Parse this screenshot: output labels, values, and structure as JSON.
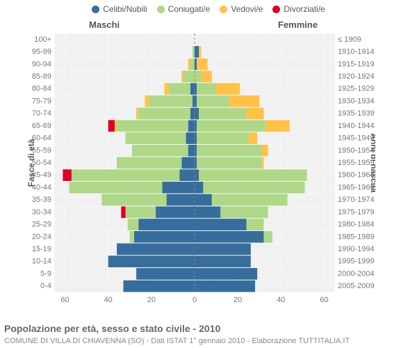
{
  "legend": [
    {
      "label": "Celibi/Nubili",
      "color": "#366d9c"
    },
    {
      "label": "Coniugati/e",
      "color": "#aed888"
    },
    {
      "label": "Vedovi/e",
      "color": "#ffc249"
    },
    {
      "label": "Divorziati/e",
      "color": "#d9002a"
    }
  ],
  "header": {
    "male": "Maschi",
    "female": "Femmine"
  },
  "axis": {
    "left_title": "Fasce di età",
    "right_title": "Anni di nascita",
    "x_ticks": [
      -60,
      -40,
      -20,
      0,
      20,
      40,
      60
    ]
  },
  "chart": {
    "plot_bg": "#f1f1f1",
    "xmin": -65,
    "xmax": 65,
    "bar_gap": 1
  },
  "age_bands": [
    {
      "age": "0-4",
      "birth": "2005-2009"
    },
    {
      "age": "5-9",
      "birth": "2000-2004"
    },
    {
      "age": "10-14",
      "birth": "1995-1999"
    },
    {
      "age": "15-19",
      "birth": "1990-1994"
    },
    {
      "age": "20-24",
      "birth": "1985-1989"
    },
    {
      "age": "25-29",
      "birth": "1980-1984"
    },
    {
      "age": "30-34",
      "birth": "1975-1979"
    },
    {
      "age": "35-39",
      "birth": "1970-1974"
    },
    {
      "age": "40-44",
      "birth": "1965-1969"
    },
    {
      "age": "45-49",
      "birth": "1960-1964"
    },
    {
      "age": "50-54",
      "birth": "1955-1959"
    },
    {
      "age": "55-59",
      "birth": "1950-1954"
    },
    {
      "age": "60-64",
      "birth": "1945-1949"
    },
    {
      "age": "65-69",
      "birth": "1940-1944"
    },
    {
      "age": "70-74",
      "birth": "1935-1939"
    },
    {
      "age": "75-79",
      "birth": "1930-1934"
    },
    {
      "age": "80-84",
      "birth": "1925-1929"
    },
    {
      "age": "85-89",
      "birth": "1920-1924"
    },
    {
      "age": "90-94",
      "birth": "1915-1919"
    },
    {
      "age": "95-99",
      "birth": "1910-1914"
    },
    {
      "age": "100+",
      "birth": "≤ 1909"
    }
  ],
  "data": {
    "male": [
      {
        "s": 33,
        "m": 0,
        "w": 0,
        "d": 0
      },
      {
        "s": 27,
        "m": 0,
        "w": 0,
        "d": 0
      },
      {
        "s": 40,
        "m": 0,
        "w": 0,
        "d": 0
      },
      {
        "s": 36,
        "m": 0,
        "w": 0,
        "d": 0
      },
      {
        "s": 28,
        "m": 2,
        "w": 0,
        "d": 0
      },
      {
        "s": 26,
        "m": 5,
        "w": 0,
        "d": 0
      },
      {
        "s": 18,
        "m": 14,
        "w": 0,
        "d": 2
      },
      {
        "s": 13,
        "m": 30,
        "w": 0,
        "d": 0
      },
      {
        "s": 15,
        "m": 43,
        "w": 0,
        "d": 0
      },
      {
        "s": 7,
        "m": 50,
        "w": 0,
        "d": 4
      },
      {
        "s": 6,
        "m": 30,
        "w": 0,
        "d": 0
      },
      {
        "s": 3,
        "m": 26,
        "w": 0,
        "d": 0
      },
      {
        "s": 4,
        "m": 28,
        "w": 0,
        "d": 0
      },
      {
        "s": 3,
        "m": 33,
        "w": 1,
        "d": 3
      },
      {
        "s": 2,
        "m": 24,
        "w": 1,
        "d": 0
      },
      {
        "s": 1,
        "m": 20,
        "w": 2,
        "d": 0
      },
      {
        "s": 2,
        "m": 10,
        "w": 2,
        "d": 0
      },
      {
        "s": 0,
        "m": 5,
        "w": 1,
        "d": 0
      },
      {
        "s": 0,
        "m": 2,
        "w": 1,
        "d": 0
      },
      {
        "s": 0,
        "m": 1,
        "w": 0,
        "d": 0
      },
      {
        "s": 0,
        "m": 0,
        "w": 0,
        "d": 0
      }
    ],
    "female": [
      {
        "s": 28,
        "m": 0,
        "w": 0,
        "d": 0
      },
      {
        "s": 29,
        "m": 0,
        "w": 0,
        "d": 0
      },
      {
        "s": 26,
        "m": 0,
        "w": 0,
        "d": 0
      },
      {
        "s": 26,
        "m": 0,
        "w": 0,
        "d": 0
      },
      {
        "s": 32,
        "m": 4,
        "w": 0,
        "d": 0
      },
      {
        "s": 24,
        "m": 8,
        "w": 0,
        "d": 0
      },
      {
        "s": 12,
        "m": 22,
        "w": 0,
        "d": 0
      },
      {
        "s": 8,
        "m": 35,
        "w": 0,
        "d": 0
      },
      {
        "s": 4,
        "m": 47,
        "w": 0,
        "d": 0
      },
      {
        "s": 2,
        "m": 50,
        "w": 0,
        "d": 0
      },
      {
        "s": 1,
        "m": 30,
        "w": 1,
        "d": 0
      },
      {
        "s": 1,
        "m": 30,
        "w": 3,
        "d": 0
      },
      {
        "s": 1,
        "m": 24,
        "w": 4,
        "d": 0
      },
      {
        "s": 1,
        "m": 32,
        "w": 11,
        "d": 0
      },
      {
        "s": 2,
        "m": 22,
        "w": 8,
        "d": 0
      },
      {
        "s": 1,
        "m": 15,
        "w": 14,
        "d": 0
      },
      {
        "s": 1,
        "m": 9,
        "w": 11,
        "d": 0
      },
      {
        "s": 0,
        "m": 3,
        "w": 5,
        "d": 0
      },
      {
        "s": 1,
        "m": 0,
        "w": 5,
        "d": 0
      },
      {
        "s": 2,
        "m": 0,
        "w": 1,
        "d": 0
      },
      {
        "s": 0,
        "m": 0,
        "w": 0,
        "d": 0
      }
    ]
  },
  "caption": {
    "title": "Popolazione per età, sesso e stato civile - 2010",
    "sub": "COMUNE DI VILLA DI CHIAVENNA (SO) - Dati ISTAT 1° gennaio 2010 - Elaborazione TUTTITALIA.IT"
  }
}
